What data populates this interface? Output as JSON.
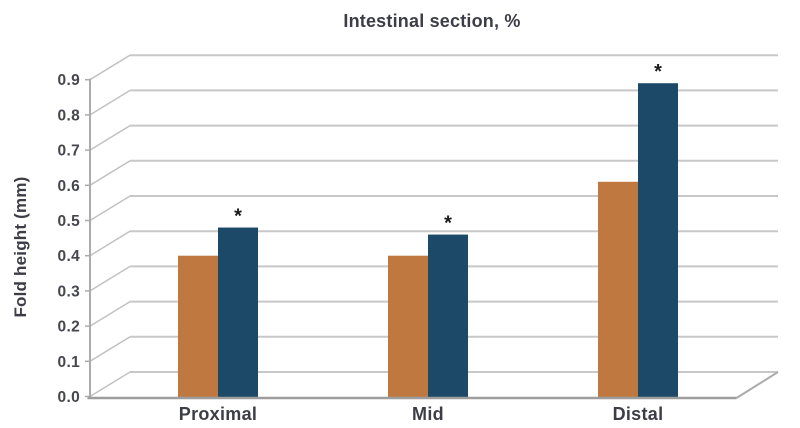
{
  "chart_data": {
    "type": "bar",
    "title": "Intestinal section, %",
    "ylabel": "Fold height (mm)",
    "xlabel": "",
    "categories": [
      "Proximal",
      "Mid",
      "Distal"
    ],
    "series": [
      {
        "name": "series-1-orange",
        "color": "#bf7840",
        "values": [
          0.4,
          0.4,
          0.61
        ]
      },
      {
        "name": "series-2-blue",
        "color": "#1b4967",
        "values": [
          0.48,
          0.46,
          0.89
        ],
        "significance": [
          "*",
          "*",
          "*"
        ]
      }
    ],
    "ylim": [
      0.0,
      0.9
    ],
    "yticks": [
      "0.0",
      "0.1",
      "0.2",
      "0.3",
      "0.4",
      "0.5",
      "0.6",
      "0.7",
      "0.8",
      "0.9"
    ],
    "grid": true,
    "legend": false,
    "style": "pseudo-3d-depth",
    "colors": {
      "gridline": "#c8c8c8",
      "depth_diagonal": "#c2c2c2",
      "front_axis": "#ababab",
      "baseline": "#9d9d9d",
      "tick_text": "#46464e",
      "label_text": "#3d3d47",
      "significance_marker": "#1a1a1a",
      "background": "#ffffff"
    }
  }
}
